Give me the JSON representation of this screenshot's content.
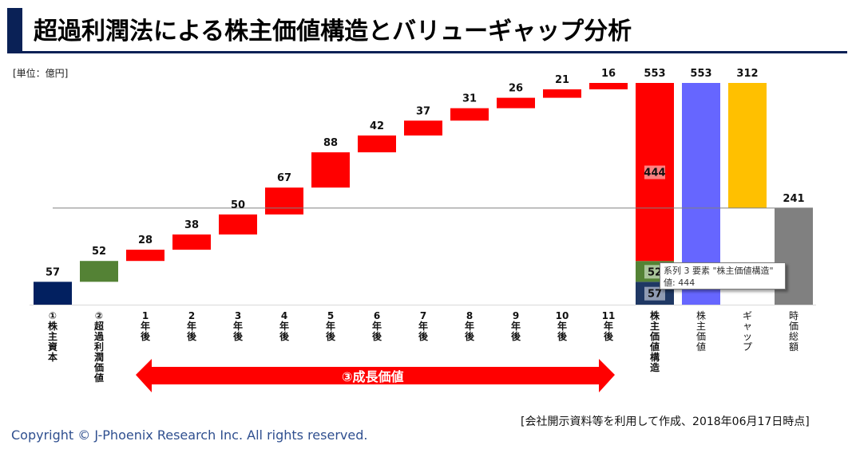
{
  "header": {
    "title": "超過利潤法による株主価値構造とバリューギャップ分析",
    "unit_label": "[単位：億円]"
  },
  "footer": {
    "copyright": "Copyright © J-Phoenix Research Inc.  All rights reserved.",
    "source_note": "[会社開示資料等を利用して作成、2018年06月17日時点]"
  },
  "tooltip": {
    "line1": "系列 3 要素 \"株主価値構造\"",
    "line2": "値: 444"
  },
  "arrow": {
    "label": "③成長価値"
  },
  "colors": {
    "equity": "#022060",
    "excess_profit": "#548235",
    "growth": "#ff0000",
    "shareholder_value": "#6666ff",
    "gap": "#ffc000",
    "market_cap": "#808080",
    "title_accent": "#0a2156"
  },
  "chart_data": {
    "type": "waterfall",
    "title": "超過利潤法による株主価値構造とバリューギャップ分析",
    "ylabel": "[単位：億円]",
    "ylim": [
      0,
      553
    ],
    "reference_line": {
      "value": 241,
      "label": "時価総額"
    },
    "categories": [
      "①株主資本",
      "②超過利潤価値",
      "1年後",
      "2年後",
      "3年後",
      "4年後",
      "5年後",
      "6年後",
      "7年後",
      "8年後",
      "9年後",
      "10年後",
      "11年後",
      "株主価値構造",
      "株主価値",
      "ギャップ",
      "時価総額"
    ],
    "category_display": [
      "①株主資本",
      "②超過利潤価値",
      "1年後",
      "2年後",
      "3年後",
      "4年後",
      "5年後",
      "6年後",
      "7年後",
      "8年後",
      "9年後",
      "10年後",
      "11年後",
      "株主価値構造",
      "株主価値",
      "ギャップ",
      "時価総額"
    ],
    "bars": [
      {
        "label": "57",
        "value": 57,
        "base": 0,
        "kind": "equity"
      },
      {
        "label": "52",
        "value": 52,
        "base": 57,
        "kind": "excess_profit"
      },
      {
        "label": "28",
        "value": 28,
        "base": 109,
        "kind": "growth"
      },
      {
        "label": "38",
        "value": 38,
        "base": 137,
        "kind": "growth"
      },
      {
        "label": "50",
        "value": 50,
        "base": 175,
        "kind": "growth"
      },
      {
        "label": "67",
        "value": 67,
        "base": 225,
        "kind": "growth"
      },
      {
        "label": "88",
        "value": 88,
        "base": 292,
        "kind": "growth"
      },
      {
        "label": "42",
        "value": 42,
        "base": 380,
        "kind": "growth"
      },
      {
        "label": "37",
        "value": 37,
        "base": 422,
        "kind": "growth"
      },
      {
        "label": "31",
        "value": 31,
        "base": 459,
        "kind": "growth"
      },
      {
        "label": "26",
        "value": 26,
        "base": 490,
        "kind": "growth"
      },
      {
        "label": "21",
        "value": 21,
        "base": 516,
        "kind": "growth"
      },
      {
        "label": "16",
        "value": 16,
        "base": 537,
        "kind": "growth"
      },
      {
        "label": "553",
        "value": 553,
        "base": 0,
        "kind": "stacked",
        "segments": [
          {
            "label": "57",
            "value": 57,
            "kind": "equity"
          },
          {
            "label": "52",
            "value": 52,
            "kind": "excess_profit"
          },
          {
            "label": "444",
            "value": 444,
            "kind": "growth"
          }
        ]
      },
      {
        "label": "553",
        "value": 553,
        "base": 0,
        "kind": "shareholder_value"
      },
      {
        "label": "312",
        "value": 312,
        "base": 241,
        "kind": "gap"
      },
      {
        "label": "241",
        "value": 241,
        "base": 0,
        "kind": "market_cap"
      }
    ]
  }
}
